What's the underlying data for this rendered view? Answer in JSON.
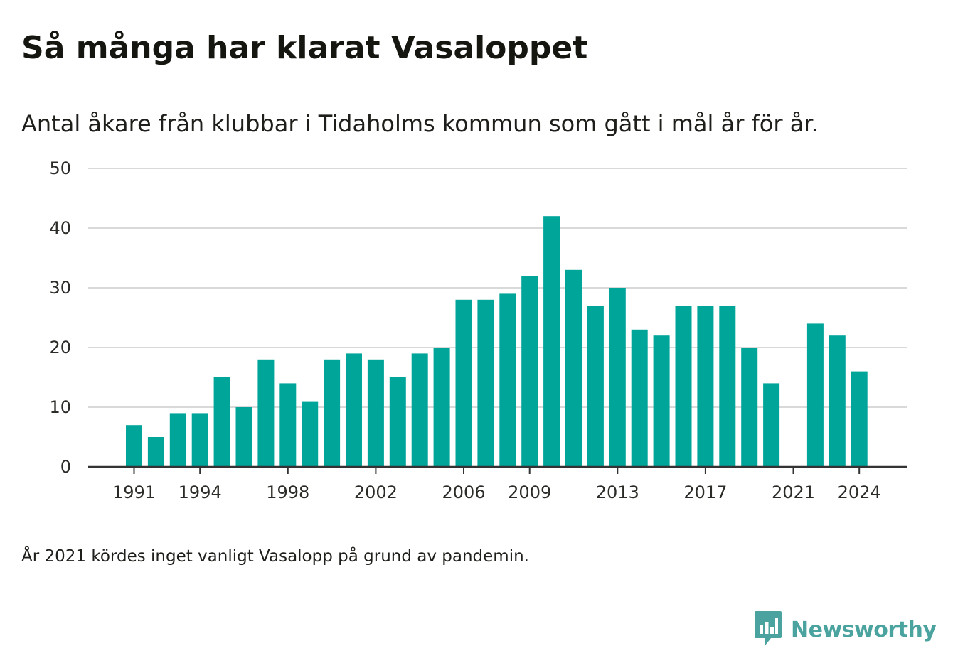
{
  "header": {
    "title": "Så många har klarat Vasaloppet",
    "subtitle": "Antal åkare från klubbar i Tidaholms kommun som gått i mål år för år."
  },
  "footer": {
    "note": "År 2021 kördes inget vanligt Vasalopp på grund av pandemin.",
    "brand": "Newsworthy"
  },
  "colors": {
    "bar": "#00a59a",
    "grid": "#d9d9d9",
    "axis": "#333333",
    "brand": "#4aa39e"
  },
  "chart_data": {
    "type": "bar",
    "title": "",
    "xlabel": "",
    "ylabel": "",
    "ylim": [
      0,
      50
    ],
    "yticks": [
      0,
      10,
      20,
      30,
      40,
      50
    ],
    "xticks": [
      "1991",
      "1994",
      "1998",
      "2002",
      "2006",
      "2009",
      "2013",
      "2017",
      "2021",
      "2024"
    ],
    "grid": true,
    "categories": [
      "1991",
      "1992",
      "1993",
      "1994",
      "1995",
      "1996",
      "1997",
      "1998",
      "1999",
      "2000",
      "2001",
      "2002",
      "2003",
      "2004",
      "2005",
      "2006",
      "2007",
      "2008",
      "2009",
      "2010",
      "2011",
      "2012",
      "2013",
      "2014",
      "2015",
      "2016",
      "2017",
      "2018",
      "2019",
      "2020",
      "2021",
      "2022",
      "2023",
      "2024"
    ],
    "values": [
      7,
      5,
      9,
      9,
      15,
      10,
      18,
      14,
      11,
      18,
      19,
      18,
      15,
      19,
      20,
      28,
      28,
      29,
      32,
      42,
      33,
      27,
      30,
      23,
      22,
      27,
      27,
      27,
      20,
      14,
      0,
      24,
      22,
      16
    ]
  }
}
